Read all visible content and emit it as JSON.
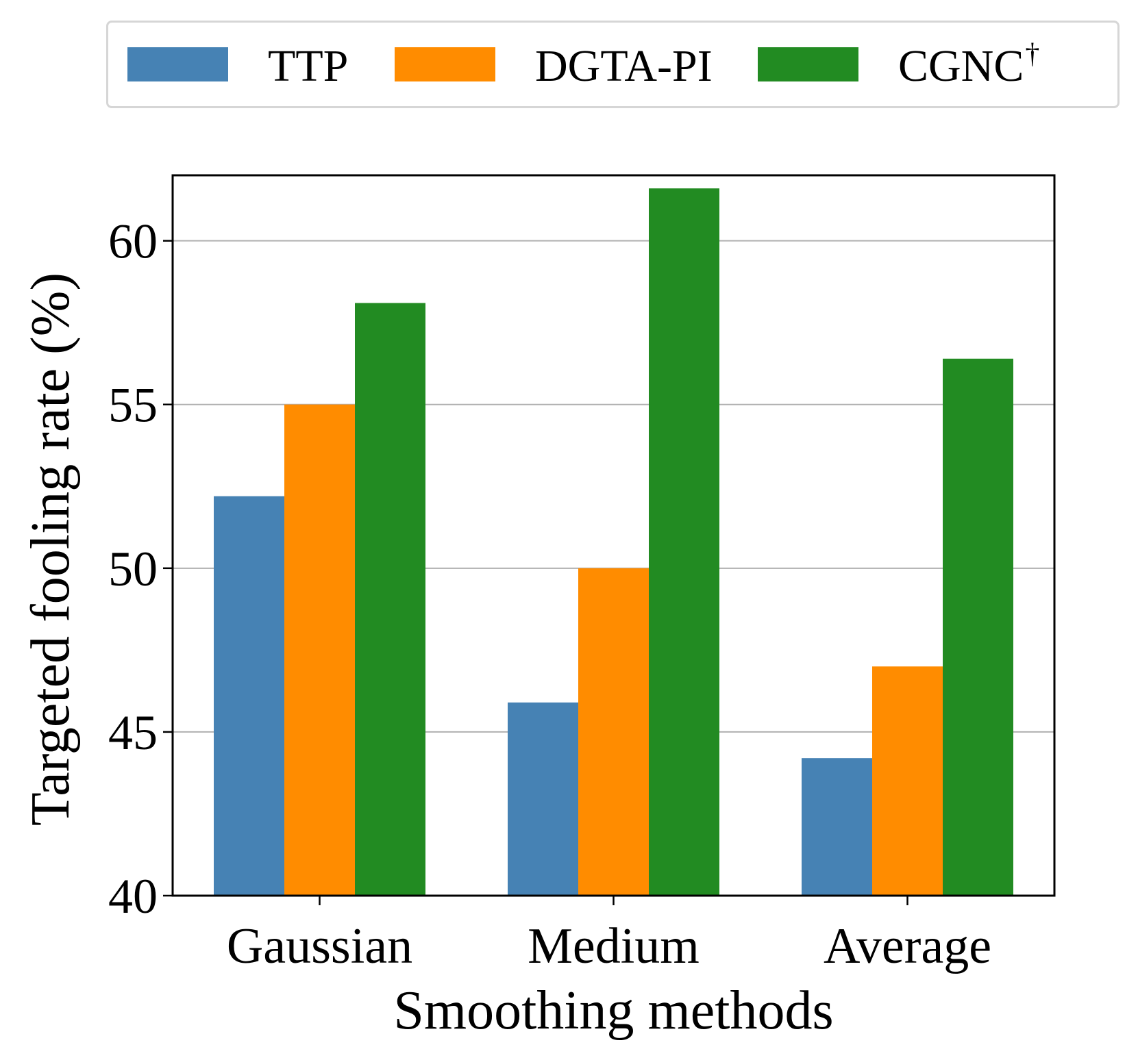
{
  "chart_data": {
    "type": "bar",
    "title": "",
    "xlabel": "Smoothing methods",
    "ylabel": "Targeted fooling rate (%)",
    "categories": [
      "Gaussian",
      "Medium",
      "Average"
    ],
    "ylim": [
      40,
      62
    ],
    "yticks": [
      "40",
      "45",
      "50",
      "55",
      "60"
    ],
    "grid": "horizontal",
    "legend_position": "top",
    "series": [
      {
        "name": "TTP",
        "superscript": "",
        "color": "#4682b4",
        "values": [
          52.2,
          45.9,
          44.2
        ]
      },
      {
        "name": "DGTA-PI",
        "superscript": "",
        "color": "#ff8c00",
        "values": [
          55.0,
          50.0,
          47.0
        ]
      },
      {
        "name": "CGNC",
        "superscript": "†",
        "color": "#228b22",
        "values": [
          58.1,
          61.6,
          56.4
        ]
      }
    ]
  }
}
